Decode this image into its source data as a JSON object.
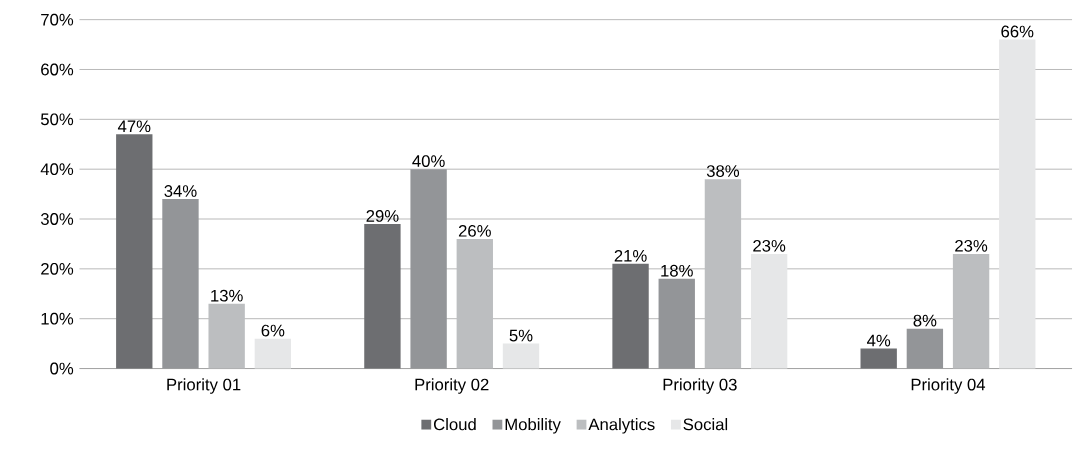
{
  "chart_data": {
    "type": "bar",
    "categories": [
      "Priority 01",
      "Priority 02",
      "Priority 03",
      "Priority 04"
    ],
    "series": [
      {
        "name": "Cloud",
        "color": "#6d6e71",
        "values": [
          47,
          29,
          21,
          4
        ],
        "value_labels": [
          "47%",
          "29%",
          "21%",
          "4%"
        ]
      },
      {
        "name": "Mobility",
        "color": "#939598",
        "values": [
          34,
          40,
          18,
          8
        ],
        "value_labels": [
          "34%",
          "40%",
          "18%",
          "8%"
        ]
      },
      {
        "name": "Analytics",
        "color": "#bcbec0",
        "values": [
          13,
          26,
          38,
          23
        ],
        "value_labels": [
          "13%",
          "26%",
          "38%",
          "23%"
        ]
      },
      {
        "name": "Social",
        "color": "#e6e7e8",
        "values": [
          6,
          5,
          23,
          66
        ],
        "value_labels": [
          "6%",
          "5%",
          "23%",
          "66%"
        ]
      }
    ],
    "ylim": [
      0,
      70
    ],
    "yticks": [
      {
        "value": 0,
        "label": "0%"
      },
      {
        "value": 10,
        "label": "10%"
      },
      {
        "value": 20,
        "label": "20%"
      },
      {
        "value": 30,
        "label": "30%"
      },
      {
        "value": 40,
        "label": "40%"
      },
      {
        "value": 50,
        "label": "50%"
      },
      {
        "value": 60,
        "label": "60%"
      },
      {
        "value": 70,
        "label": "70%"
      }
    ],
    "grid": "y",
    "legend": "bottom"
  }
}
